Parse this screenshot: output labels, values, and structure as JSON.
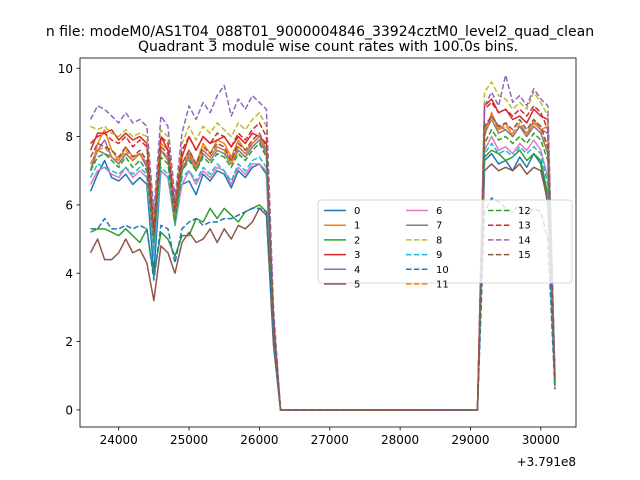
{
  "figure": {
    "suptitle": "n file: modeM0/AS1T04_088T01_9000004846_33924cztM0_level2_quad_clean",
    "title": "Quadrant 3 module wise count rates with 100.0s bins."
  },
  "colors": {
    "c0": "#1f77b4",
    "c1": "#ff7f0e",
    "c2": "#2ca02c",
    "c3": "#d62728",
    "c4": "#9467bd",
    "c5": "#8c564b",
    "c6": "#e377c2",
    "c7": "#7f7f7f",
    "c8": "#bcbd22",
    "c9": "#17becf"
  },
  "chart_data": {
    "type": "line",
    "title": "Quadrant 3 module wise count rates with 100.0s bins.",
    "xlabel": "",
    "ylabel": "",
    "x_offset_text": "+3.791e8",
    "xlim": [
      23450,
      30500
    ],
    "ylim": [
      -0.5,
      10.3
    ],
    "xticks": [
      24000,
      25000,
      26000,
      27000,
      28000,
      29000,
      30000
    ],
    "yticks": [
      0,
      2,
      4,
      6,
      8,
      10
    ],
    "grid": false,
    "legend": {
      "placement": "center-right",
      "ncol": 3
    },
    "x": [
      23600,
      23700,
      23800,
      23900,
      24000,
      24100,
      24200,
      24300,
      24400,
      24500,
      24600,
      24700,
      24800,
      24900,
      25000,
      25100,
      25200,
      25300,
      25400,
      25500,
      25600,
      25700,
      25800,
      25900,
      26000,
      26100,
      26200,
      26300,
      26400,
      29100,
      29200,
      29300,
      29400,
      29500,
      29600,
      29700,
      29800,
      29900,
      30000,
      30100,
      30200
    ],
    "series": [
      {
        "name": "0",
        "color": "#1f77b4",
        "dash": "solid",
        "values": [
          6.4,
          6.9,
          7.3,
          6.8,
          6.7,
          6.9,
          6.6,
          6.8,
          6.6,
          4.0,
          7.0,
          6.8,
          5.6,
          6.6,
          6.7,
          6.3,
          6.9,
          6.7,
          7.0,
          6.9,
          6.5,
          7.0,
          6.8,
          7.1,
          7.2,
          6.9,
          2.4,
          0,
          0,
          0,
          7.3,
          7.5,
          7.2,
          7.3,
          7.0,
          7.4,
          7.1,
          7.5,
          7.2,
          6.0,
          0.8
        ]
      },
      {
        "name": "1",
        "color": "#ff7f0e",
        "dash": "solid",
        "values": [
          7.0,
          7.8,
          8.2,
          7.6,
          7.3,
          7.7,
          7.4,
          7.5,
          7.2,
          5.0,
          7.8,
          7.6,
          5.9,
          7.2,
          7.6,
          7.2,
          7.8,
          7.5,
          7.9,
          7.8,
          7.4,
          7.9,
          7.6,
          7.8,
          8.0,
          7.6,
          2.6,
          0,
          0,
          0,
          8.0,
          8.7,
          8.2,
          8.4,
          8.0,
          8.3,
          8.0,
          8.5,
          8.2,
          8.3,
          0.9
        ]
      },
      {
        "name": "2",
        "color": "#2ca02c",
        "dash": "solid",
        "values": [
          5.2,
          5.3,
          5.3,
          5.2,
          5.1,
          5.3,
          5.1,
          4.9,
          5.3,
          3.9,
          5.2,
          5.0,
          4.5,
          5.1,
          5.1,
          5.6,
          5.5,
          5.9,
          5.6,
          5.9,
          5.7,
          5.5,
          5.8,
          5.9,
          6.0,
          5.8,
          2.0,
          0,
          0,
          0,
          7.4,
          7.6,
          7.5,
          7.3,
          7.4,
          7.6,
          7.3,
          7.5,
          7.3,
          6.3,
          0.8
        ]
      },
      {
        "name": "3",
        "color": "#d62728",
        "dash": "solid",
        "values": [
          7.6,
          8.1,
          8.1,
          8.2,
          7.9,
          8.1,
          7.9,
          8.0,
          7.8,
          5.4,
          8.0,
          7.6,
          5.8,
          7.4,
          8.0,
          7.6,
          8.0,
          7.8,
          7.9,
          8.0,
          7.7,
          8.0,
          7.8,
          8.1,
          8.0,
          7.8,
          2.7,
          0,
          0,
          0,
          8.9,
          9.1,
          8.7,
          8.8,
          8.5,
          8.6,
          8.4,
          8.8,
          8.6,
          8.5,
          1.0
        ]
      },
      {
        "name": "4",
        "color": "#9467bd",
        "dash": "solid",
        "values": [
          7.0,
          7.6,
          7.9,
          7.4,
          7.2,
          7.5,
          7.3,
          7.5,
          7.1,
          5.2,
          7.6,
          7.4,
          5.7,
          7.0,
          7.5,
          7.1,
          7.6,
          7.4,
          7.7,
          7.6,
          7.3,
          7.7,
          7.5,
          7.8,
          8.0,
          7.6,
          2.6,
          0,
          0,
          0,
          8.2,
          8.6,
          8.3,
          8.2,
          8.0,
          8.3,
          8.1,
          8.4,
          8.2,
          8.1,
          0.9
        ]
      },
      {
        "name": "5",
        "color": "#8c564b",
        "dash": "solid",
        "values": [
          4.6,
          5.0,
          4.4,
          4.4,
          4.6,
          5.0,
          4.6,
          4.7,
          4.3,
          3.2,
          4.8,
          4.6,
          4.0,
          4.9,
          5.2,
          4.9,
          5.0,
          5.3,
          4.9,
          5.3,
          5.0,
          5.4,
          5.3,
          5.5,
          5.9,
          5.7,
          1.9,
          0,
          0,
          0,
          7.0,
          7.2,
          7.0,
          7.1,
          7.0,
          7.2,
          6.9,
          7.1,
          7.0,
          6.1,
          0.7
        ]
      },
      {
        "name": "6",
        "color": "#e377c2",
        "dash": "solid",
        "values": [
          6.6,
          7.0,
          7.1,
          6.9,
          6.8,
          7.1,
          6.8,
          7.0,
          6.8,
          4.6,
          7.0,
          6.8,
          5.4,
          6.6,
          7.0,
          6.6,
          7.0,
          6.8,
          7.1,
          7.0,
          6.6,
          7.1,
          6.9,
          7.2,
          7.2,
          7.0,
          2.4,
          0,
          0,
          0,
          7.6,
          8.0,
          7.6,
          7.7,
          7.5,
          7.8,
          7.6,
          7.9,
          7.6,
          6.8,
          0.8
        ]
      },
      {
        "name": "7",
        "color": "#7f7f7f",
        "dash": "solid",
        "values": [
          7.2,
          7.6,
          7.5,
          7.4,
          7.2,
          7.5,
          7.3,
          7.5,
          7.2,
          5.1,
          7.6,
          7.3,
          5.6,
          7.0,
          7.4,
          7.0,
          7.5,
          7.3,
          7.6,
          7.5,
          7.2,
          7.6,
          7.4,
          7.7,
          7.9,
          7.5,
          2.6,
          0,
          0,
          0,
          8.1,
          8.5,
          8.1,
          8.2,
          8.0,
          8.3,
          8.0,
          8.3,
          8.1,
          7.5,
          0.9
        ]
      },
      {
        "name": "8",
        "color": "#bcbd22",
        "dash": "dashed",
        "values": [
          8.3,
          8.2,
          8.3,
          8.1,
          8.0,
          8.2,
          8.0,
          8.1,
          8.0,
          5.6,
          8.2,
          8.0,
          6.0,
          7.8,
          8.3,
          7.9,
          8.3,
          8.1,
          8.4,
          8.2,
          8.0,
          8.4,
          8.2,
          8.5,
          8.7,
          8.3,
          2.8,
          0,
          0,
          0,
          9.3,
          9.6,
          9.2,
          9.1,
          8.8,
          9.0,
          8.8,
          9.3,
          9.0,
          8.6,
          1.0
        ]
      },
      {
        "name": "9",
        "color": "#17becf",
        "dash": "dashed",
        "values": [
          6.8,
          7.2,
          7.1,
          7.0,
          6.9,
          7.1,
          6.9,
          7.1,
          6.9,
          4.5,
          7.1,
          6.9,
          5.4,
          6.8,
          7.0,
          6.7,
          7.1,
          6.9,
          7.2,
          7.0,
          6.7,
          7.2,
          7.0,
          7.3,
          7.4,
          7.1,
          2.4,
          0,
          0,
          0,
          7.5,
          7.8,
          7.5,
          7.6,
          7.4,
          7.7,
          7.5,
          7.7,
          7.5,
          6.6,
          0.8
        ]
      },
      {
        "name": "10",
        "color": "#1f77b4",
        "dash": "dashed",
        "values": [
          5.3,
          5.3,
          5.6,
          5.3,
          5.3,
          5.4,
          5.3,
          5.4,
          5.3,
          3.8,
          5.4,
          5.3,
          4.3,
          5.3,
          5.5,
          5.6,
          5.4,
          5.5,
          5.5,
          5.6,
          5.6,
          5.7,
          5.8,
          5.9,
          5.9,
          5.8,
          2.0,
          0,
          0,
          0,
          5.8,
          6.2,
          6.1,
          5.9,
          5.8,
          6.0,
          5.7,
          5.9,
          5.8,
          5.0,
          0.6
        ]
      },
      {
        "name": "11",
        "color": "#ff7f0e",
        "dash": "dashed",
        "values": [
          7.2,
          7.6,
          7.7,
          7.4,
          7.3,
          7.6,
          7.3,
          7.5,
          7.2,
          5.0,
          7.6,
          7.4,
          5.7,
          7.1,
          7.5,
          7.1,
          7.6,
          7.4,
          7.7,
          7.6,
          7.2,
          7.7,
          7.5,
          7.8,
          8.0,
          7.6,
          2.6,
          0,
          0,
          0,
          8.2,
          8.5,
          8.2,
          8.3,
          8.1,
          8.4,
          8.1,
          8.4,
          8.2,
          7.6,
          0.9
        ]
      },
      {
        "name": "12",
        "color": "#2ca02c",
        "dash": "dashed",
        "values": [
          7.0,
          7.4,
          7.5,
          7.3,
          7.1,
          7.4,
          7.1,
          7.3,
          7.0,
          4.9,
          7.4,
          7.2,
          5.5,
          7.0,
          7.3,
          7.0,
          7.4,
          7.2,
          7.5,
          7.4,
          7.1,
          7.5,
          7.3,
          7.6,
          7.8,
          7.4,
          2.5,
          0,
          0,
          0,
          7.8,
          8.2,
          7.9,
          8.0,
          7.8,
          8.0,
          7.8,
          8.1,
          7.9,
          7.3,
          0.8
        ]
      },
      {
        "name": "13",
        "color": "#d62728",
        "dash": "dashed",
        "values": [
          7.8,
          8.0,
          8.1,
          7.9,
          7.8,
          8.0,
          7.7,
          7.9,
          7.7,
          5.3,
          8.0,
          7.8,
          5.9,
          7.6,
          8.0,
          7.6,
          8.0,
          7.8,
          8.1,
          8.0,
          7.7,
          8.1,
          7.9,
          8.2,
          8.4,
          8.0,
          2.7,
          0,
          0,
          0,
          8.8,
          9.0,
          8.7,
          8.8,
          8.6,
          8.8,
          8.6,
          8.9,
          8.7,
          8.2,
          1.0
        ]
      },
      {
        "name": "14",
        "color": "#9467bd",
        "dash": "dashed",
        "values": [
          8.5,
          8.9,
          8.8,
          8.6,
          8.4,
          8.7,
          8.4,
          8.5,
          8.3,
          5.8,
          8.6,
          8.3,
          6.2,
          8.1,
          8.9,
          8.5,
          9.0,
          8.7,
          9.2,
          9.5,
          8.6,
          9.1,
          8.8,
          9.2,
          9.0,
          8.8,
          3.0,
          0,
          0,
          0,
          8.9,
          9.3,
          8.9,
          9.8,
          9.0,
          9.2,
          8.9,
          9.4,
          9.1,
          8.9,
          1.1
        ]
      },
      {
        "name": "15",
        "color": "#8c564b",
        "dash": "dashed",
        "values": [
          7.4,
          7.8,
          7.7,
          7.6,
          7.4,
          7.7,
          7.4,
          7.6,
          7.3,
          5.1,
          7.7,
          7.5,
          5.8,
          7.2,
          7.6,
          7.2,
          7.7,
          7.5,
          7.8,
          7.7,
          7.3,
          7.8,
          7.6,
          7.9,
          8.1,
          7.7,
          2.6,
          0,
          0,
          0,
          8.3,
          8.6,
          8.3,
          8.4,
          8.2,
          8.5,
          8.2,
          8.5,
          8.3,
          7.7,
          0.9
        ]
      }
    ]
  }
}
